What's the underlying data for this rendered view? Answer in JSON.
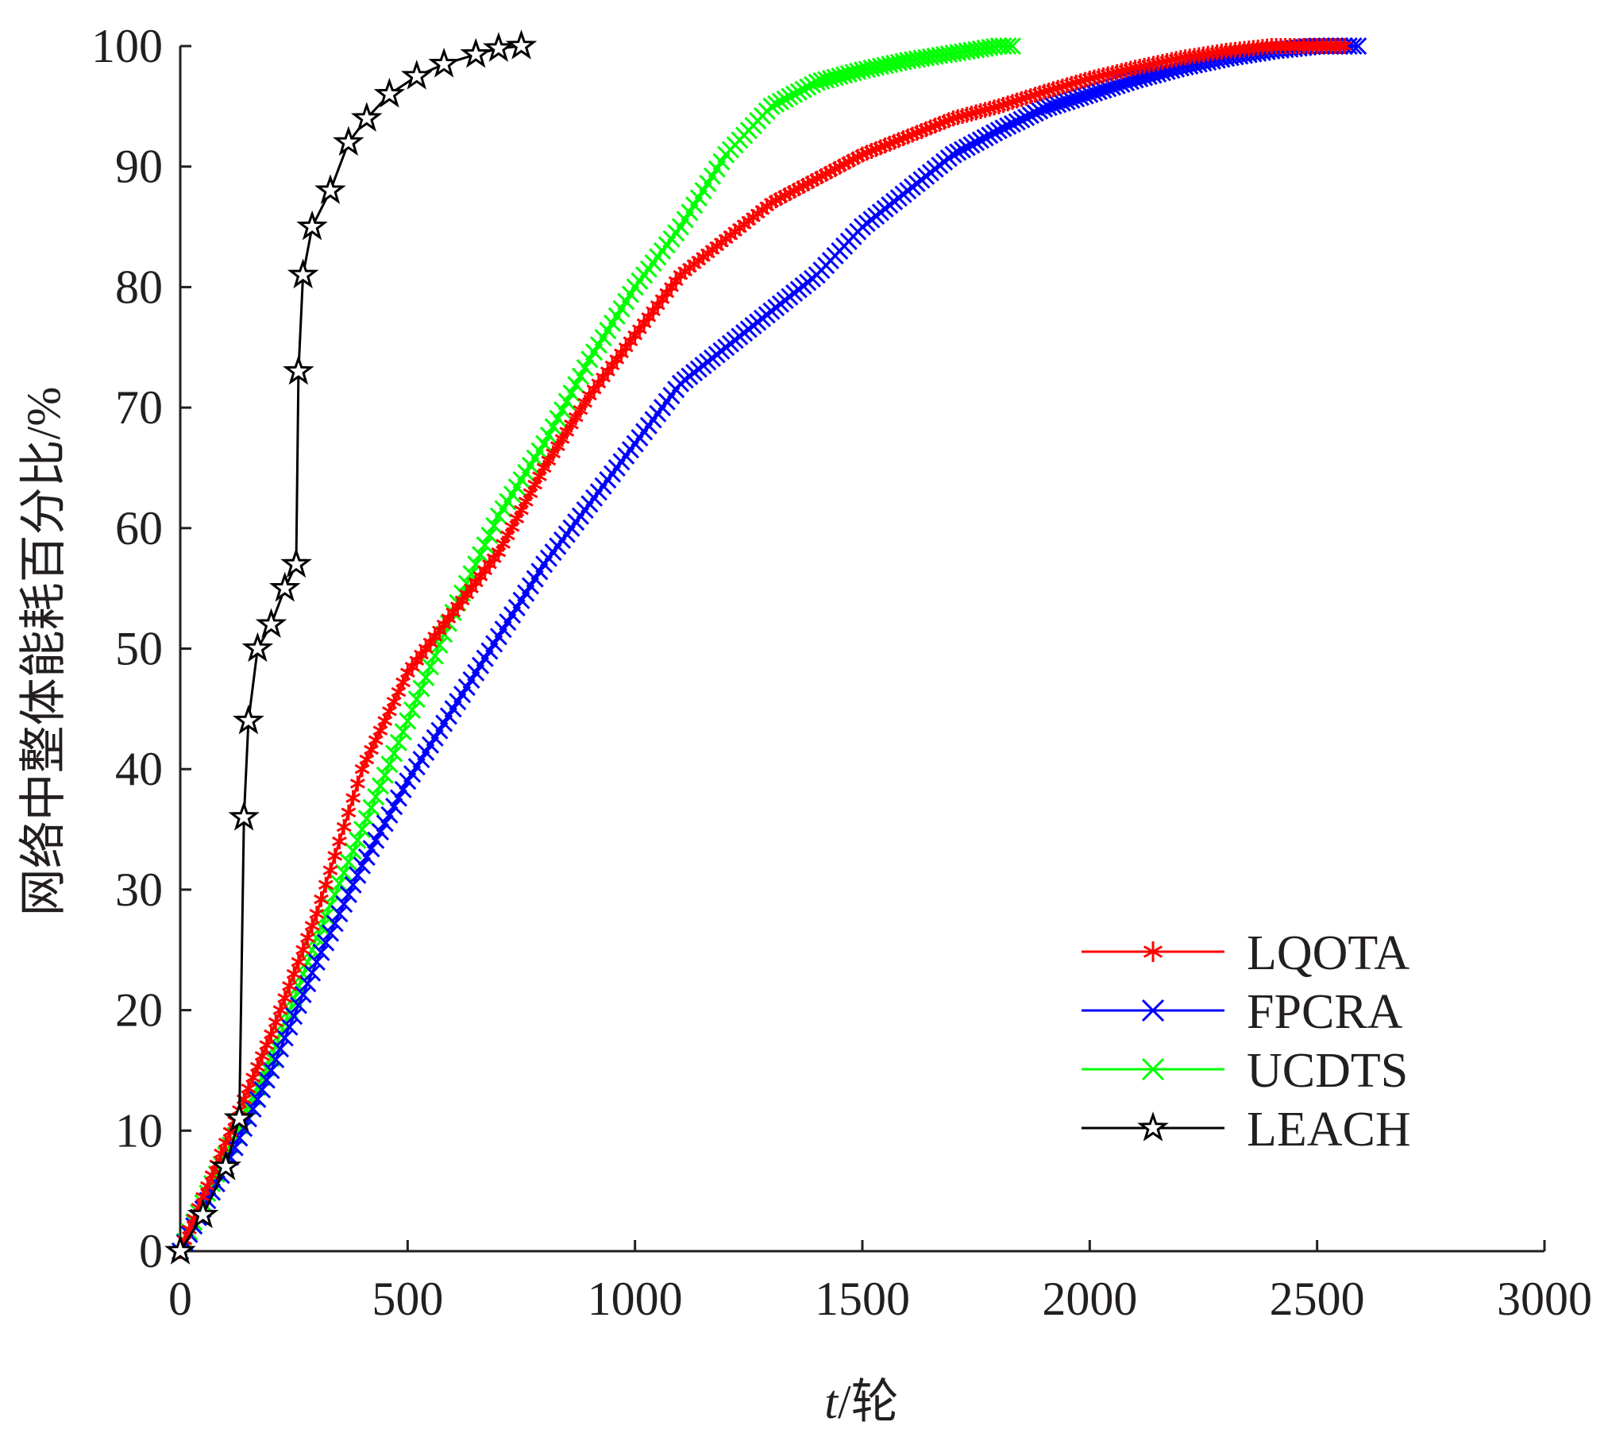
{
  "chart_data": {
    "type": "line",
    "title": "",
    "xlabel": {
      "italic_part": "t",
      "rest": "/轮"
    },
    "ylabel": "网络中整体能耗百分比/%",
    "xlim": [
      0,
      3000
    ],
    "ylim": [
      0,
      100
    ],
    "xticks": [
      "0",
      "500",
      "1000",
      "1500",
      "2000",
      "2500",
      "3000"
    ],
    "yticks": [
      "0",
      "10",
      "20",
      "30",
      "40",
      "50",
      "60",
      "70",
      "80",
      "90",
      "100"
    ],
    "grid": false,
    "legend_position": "bottom-right",
    "series": [
      {
        "name": "LQOTA",
        "color": "#ff0000",
        "marker": "asterisk",
        "points": [
          [
            0,
            0
          ],
          [
            100,
            9
          ],
          [
            200,
            18
          ],
          [
            300,
            28
          ],
          [
            400,
            40
          ],
          [
            500,
            48
          ],
          [
            600,
            53
          ],
          [
            700,
            58
          ],
          [
            800,
            65
          ],
          [
            900,
            71
          ],
          [
            1000,
            76
          ],
          [
            1100,
            81
          ],
          [
            1200,
            84
          ],
          [
            1300,
            87
          ],
          [
            1400,
            89
          ],
          [
            1500,
            91
          ],
          [
            1600,
            92.5
          ],
          [
            1700,
            94
          ],
          [
            1800,
            95
          ],
          [
            1900,
            96.2
          ],
          [
            2000,
            97.3
          ],
          [
            2100,
            98.2
          ],
          [
            2200,
            99
          ],
          [
            2300,
            99.6
          ],
          [
            2400,
            100
          ],
          [
            2500,
            100
          ],
          [
            2560,
            100
          ]
        ]
      },
      {
        "name": "FPCRA",
        "color": "#0000ff",
        "marker": "x",
        "points": [
          [
            0,
            0
          ],
          [
            100,
            7
          ],
          [
            200,
            15
          ],
          [
            300,
            24
          ],
          [
            400,
            32
          ],
          [
            500,
            39
          ],
          [
            600,
            45
          ],
          [
            700,
            51
          ],
          [
            800,
            57
          ],
          [
            900,
            62
          ],
          [
            1000,
            67
          ],
          [
            1100,
            72
          ],
          [
            1200,
            75
          ],
          [
            1300,
            78
          ],
          [
            1400,
            81
          ],
          [
            1500,
            85
          ],
          [
            1600,
            88
          ],
          [
            1700,
            91
          ],
          [
            1800,
            93
          ],
          [
            1900,
            94.8
          ],
          [
            2000,
            96
          ],
          [
            2100,
            97.2
          ],
          [
            2200,
            98.2
          ],
          [
            2300,
            99
          ],
          [
            2400,
            99.6
          ],
          [
            2500,
            100
          ],
          [
            2590,
            100
          ]
        ]
      },
      {
        "name": "UCDTS",
        "color": "#00ff00",
        "marker": "x",
        "points": [
          [
            0,
            0
          ],
          [
            100,
            8
          ],
          [
            200,
            16
          ],
          [
            300,
            26
          ],
          [
            400,
            35
          ],
          [
            500,
            44
          ],
          [
            600,
            53
          ],
          [
            700,
            61
          ],
          [
            800,
            67
          ],
          [
            900,
            74
          ],
          [
            1000,
            80
          ],
          [
            1100,
            85
          ],
          [
            1200,
            91
          ],
          [
            1300,
            95
          ],
          [
            1400,
            97
          ],
          [
            1500,
            98
          ],
          [
            1600,
            98.8
          ],
          [
            1700,
            99.4
          ],
          [
            1800,
            100
          ],
          [
            1830,
            100
          ]
        ]
      },
      {
        "name": "LEACH",
        "color": "#000000",
        "marker": "star",
        "points": [
          [
            0,
            0
          ],
          [
            50,
            3
          ],
          [
            100,
            7
          ],
          [
            130,
            11
          ],
          [
            140,
            36
          ],
          [
            150,
            44
          ],
          [
            170,
            50
          ],
          [
            200,
            52
          ],
          [
            230,
            55
          ],
          [
            255,
            57
          ],
          [
            260,
            73
          ],
          [
            270,
            81
          ],
          [
            290,
            85
          ],
          [
            330,
            88
          ],
          [
            370,
            92
          ],
          [
            410,
            94
          ],
          [
            460,
            96
          ],
          [
            520,
            97.5
          ],
          [
            580,
            98.5
          ],
          [
            650,
            99.3
          ],
          [
            700,
            99.8
          ],
          [
            750,
            100
          ]
        ]
      }
    ]
  }
}
